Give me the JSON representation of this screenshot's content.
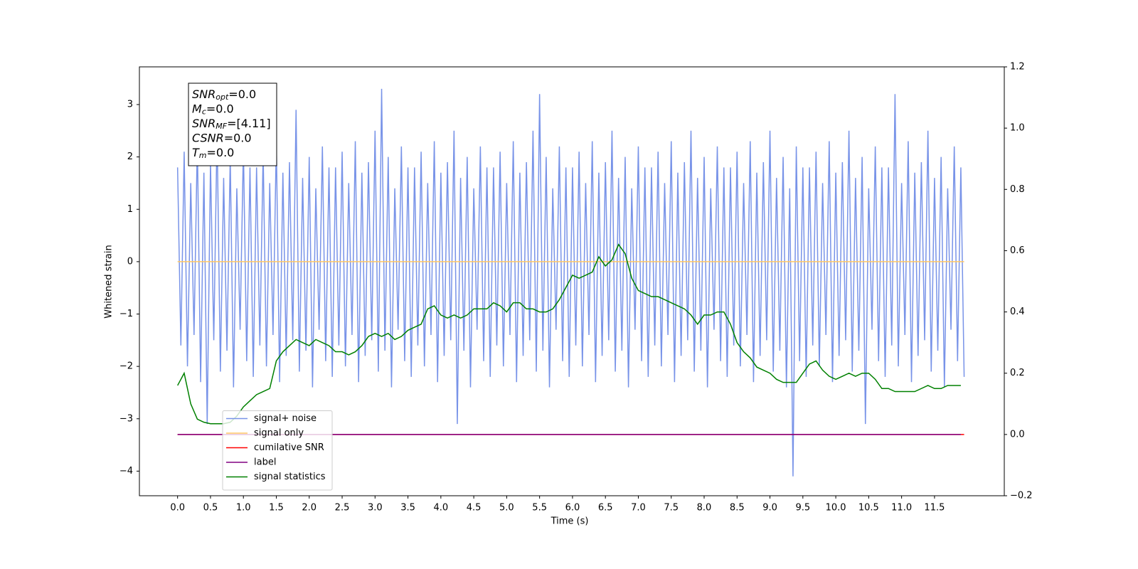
{
  "chart_data": {
    "type": "line",
    "xlabel": "Time (s)",
    "ylabel": "Whitened strain",
    "xlim": [
      -0.58,
      12.56
    ],
    "ylim": [
      -4.47,
      3.72
    ],
    "y2lim": [
      -0.2,
      1.2
    ],
    "xticks": [
      {
        "value": 0,
        "label": "0.0"
      },
      {
        "value": 0.5,
        "label": "0.5"
      },
      {
        "value": 1,
        "label": "1.0"
      },
      {
        "value": 1.5,
        "label": "1.5"
      },
      {
        "value": 2,
        "label": "2.0"
      },
      {
        "value": 2.5,
        "label": "2.5"
      },
      {
        "value": 3,
        "label": "3.0"
      },
      {
        "value": 3.5,
        "label": "3.5"
      },
      {
        "value": 4,
        "label": "4.0"
      },
      {
        "value": 4.5,
        "label": "4.5"
      },
      {
        "value": 5,
        "label": "5.0"
      },
      {
        "value": 5.5,
        "label": "5.5"
      },
      {
        "value": 6,
        "label": "6.0"
      },
      {
        "value": 6.5,
        "label": "6.5"
      },
      {
        "value": 7,
        "label": "7.0"
      },
      {
        "value": 7.5,
        "label": "7.5"
      },
      {
        "value": 8,
        "label": "8.0"
      },
      {
        "value": 8.5,
        "label": "8.5"
      },
      {
        "value": 9,
        "label": "9.0"
      },
      {
        "value": 9.5,
        "label": "9.5"
      },
      {
        "value": 10,
        "label": "10.0"
      },
      {
        "value": 10.5,
        "label": "10.5"
      },
      {
        "value": 11,
        "label": "11.0"
      },
      {
        "value": 11.5,
        "label": "11.5"
      }
    ],
    "yticks": [
      {
        "value": -4,
        "label": "−4"
      },
      {
        "value": -3,
        "label": "−3"
      },
      {
        "value": -2,
        "label": "−2"
      },
      {
        "value": -1,
        "label": "−1"
      },
      0,
      1,
      2,
      3
    ],
    "y2ticks": [
      {
        "value": -0.2,
        "label": "−0.2"
      },
      {
        "value": 0,
        "label": "0.0"
      },
      {
        "value": 0.2,
        "label": "0.2"
      },
      {
        "value": 0.4,
        "label": "0.4"
      },
      {
        "value": 0.6,
        "label": "0.6"
      },
      {
        "value": 0.8,
        "label": "0.8"
      },
      {
        "value": 1.0,
        "label": "1.0"
      },
      {
        "value": 1.2,
        "label": "1.2"
      }
    ],
    "legend": "lower left",
    "annotations": [
      {
        "text": "SNR",
        "sub": "opt",
        "value": "=0.0"
      },
      {
        "text": "M",
        "sub": "c",
        "value": "=0.0"
      },
      {
        "text": "SNR",
        "sub": "MF",
        "value": "=[4.11]"
      },
      {
        "text": "CSNR",
        "value": "=0.0"
      },
      {
        "text": "T",
        "sub": "m",
        "value": "=0.0"
      }
    ],
    "series": [
      {
        "name": "signal+ noise",
        "color": "#7893e8",
        "x": [
          0,
          0.05,
          0.1,
          0.15,
          0.2,
          0.25,
          0.3,
          0.35,
          0.4,
          0.45,
          0.5,
          0.55,
          0.6,
          0.65,
          0.7,
          0.75,
          0.8,
          0.85,
          0.9,
          0.95,
          1,
          1.05,
          1.1,
          1.15,
          1.2,
          1.25,
          1.3,
          1.35,
          1.4,
          1.45,
          1.5,
          1.55,
          1.6,
          1.65,
          1.7,
          1.75,
          1.8,
          1.85,
          1.9,
          1.95,
          2,
          2.05,
          2.1,
          2.15,
          2.2,
          2.25,
          2.3,
          2.35,
          2.4,
          2.45,
          2.5,
          2.55,
          2.6,
          2.65,
          2.7,
          2.75,
          2.8,
          2.85,
          2.9,
          2.95,
          3,
          3.05,
          3.1,
          3.15,
          3.2,
          3.25,
          3.3,
          3.35,
          3.4,
          3.45,
          3.5,
          3.55,
          3.6,
          3.65,
          3.7,
          3.75,
          3.8,
          3.85,
          3.9,
          3.95,
          4,
          4.05,
          4.1,
          4.15,
          4.2,
          4.25,
          4.3,
          4.35,
          4.4,
          4.45,
          4.5,
          4.55,
          4.6,
          4.65,
          4.7,
          4.75,
          4.8,
          4.85,
          4.9,
          4.95,
          5,
          5.05,
          5.1,
          5.15,
          5.2,
          5.25,
          5.3,
          5.35,
          5.4,
          5.45,
          5.5,
          5.55,
          5.6,
          5.65,
          5.7,
          5.75,
          5.8,
          5.85,
          5.9,
          5.95,
          6,
          6.05,
          6.1,
          6.15,
          6.2,
          6.25,
          6.3,
          6.35,
          6.4,
          6.45,
          6.5,
          6.55,
          6.6,
          6.65,
          6.7,
          6.75,
          6.8,
          6.85,
          6.9,
          6.95,
          7,
          7.05,
          7.1,
          7.15,
          7.2,
          7.25,
          7.3,
          7.35,
          7.4,
          7.45,
          7.5,
          7.55,
          7.6,
          7.65,
          7.7,
          7.75,
          7.8,
          7.85,
          7.9,
          7.95,
          8,
          8.05,
          8.1,
          8.15,
          8.2,
          8.25,
          8.3,
          8.35,
          8.4,
          8.45,
          8.5,
          8.55,
          8.6,
          8.65,
          8.7,
          8.75,
          8.8,
          8.85,
          8.9,
          8.95,
          9,
          9.05,
          9.1,
          9.15,
          9.2,
          9.25,
          9.3,
          9.35,
          9.4,
          9.45,
          9.5,
          9.55,
          9.6,
          9.65,
          9.7,
          9.75,
          9.8,
          9.85,
          9.9,
          9.95,
          10,
          10.05,
          10.1,
          10.15,
          10.2,
          10.25,
          10.3,
          10.35,
          10.4,
          10.45,
          10.5,
          10.55,
          10.6,
          10.65,
          10.7,
          10.75,
          10.8,
          10.85,
          10.9,
          10.95,
          11,
          11.05,
          11.1,
          11.15,
          11.2,
          11.25,
          11.3,
          11.35,
          11.4,
          11.45,
          11.5,
          11.55,
          11.6,
          11.65,
          11.7,
          11.75,
          11.8,
          11.85,
          11.9,
          11.95
        ],
        "values": [
          1.8,
          -1.6,
          2.1,
          -2.0,
          1.5,
          -1.4,
          2.3,
          -2.3,
          1.7,
          -3.1,
          1.9,
          -1.5,
          2.5,
          -2.1,
          1.6,
          -1.7,
          2.0,
          -2.4,
          1.4,
          -1.3,
          2.2,
          -1.9,
          1.8,
          -2.2,
          1.8,
          -1.6,
          2.1,
          -2.0,
          1.5,
          -1.4,
          2.3,
          -2.3,
          1.7,
          -1.8,
          1.9,
          -1.5,
          2.9,
          -2.1,
          1.6,
          -1.7,
          2.0,
          -2.4,
          1.4,
          -1.3,
          2.2,
          -1.9,
          1.8,
          -2.2,
          1.8,
          -1.6,
          2.1,
          -2.0,
          1.5,
          -1.4,
          2.3,
          -2.3,
          1.7,
          -1.8,
          1.9,
          -1.5,
          2.5,
          -2.1,
          3.3,
          -1.7,
          2.0,
          -2.4,
          1.4,
          -1.3,
          2.2,
          -1.9,
          1.8,
          -2.2,
          1.8,
          -1.6,
          2.1,
          -2.0,
          1.5,
          -1.4,
          2.3,
          -2.3,
          1.7,
          -1.8,
          1.9,
          -1.5,
          2.5,
          -3.1,
          1.6,
          -1.7,
          2.0,
          -2.4,
          1.4,
          -1.3,
          2.2,
          -1.9,
          1.8,
          -2.2,
          1.8,
          -1.6,
          2.1,
          -2.0,
          1.5,
          -1.4,
          2.3,
          -2.3,
          1.7,
          -1.8,
          1.9,
          -1.5,
          2.5,
          -2.1,
          3.2,
          -1.7,
          2.0,
          -2.4,
          1.4,
          -1.3,
          2.2,
          -1.9,
          1.8,
          -2.2,
          1.8,
          -1.6,
          2.1,
          -2.0,
          1.5,
          -1.4,
          2.3,
          -2.3,
          1.7,
          -1.8,
          1.9,
          -1.5,
          2.5,
          -2.1,
          1.6,
          -1.7,
          2.0,
          -2.4,
          1.4,
          -1.3,
          2.2,
          -1.9,
          1.8,
          -2.2,
          1.8,
          -1.6,
          2.1,
          -2.0,
          1.5,
          -1.4,
          2.3,
          -2.3,
          1.7,
          -1.8,
          1.9,
          -1.5,
          2.5,
          -2.1,
          1.6,
          -1.7,
          2.0,
          -2.4,
          1.4,
          -1.3,
          2.2,
          -1.9,
          1.8,
          -2.2,
          1.8,
          -1.6,
          2.1,
          -2.0,
          1.5,
          -1.4,
          2.3,
          -2.3,
          1.7,
          -1.8,
          1.9,
          -1.5,
          2.5,
          -2.1,
          1.6,
          -1.7,
          2.0,
          -2.4,
          1.4,
          -4.1,
          2.2,
          -1.9,
          1.8,
          -2.2,
          1.8,
          -1.6,
          2.1,
          -2.0,
          1.5,
          -1.4,
          2.3,
          -2.3,
          1.7,
          -1.8,
          1.9,
          -1.5,
          2.5,
          -2.1,
          1.6,
          -1.7,
          2.0,
          -3.1,
          1.4,
          -1.3,
          2.2,
          -1.9,
          1.8,
          -2.2,
          1.8,
          -1.6,
          3.2,
          -2.0,
          1.5,
          -1.4,
          2.3,
          -2.3,
          1.7,
          -1.8,
          1.9,
          -1.5,
          2.5,
          -2.1,
          1.6,
          -1.7,
          2.0,
          -2.4,
          1.4,
          -1.3,
          2.2,
          -1.9,
          1.8,
          -2.2
        ]
      },
      {
        "name": "signal only",
        "color": "#ffc766",
        "x": [
          0,
          11.95
        ],
        "values": [
          0,
          0
        ]
      },
      {
        "name": "cumilative SNR",
        "color": "#ff0000",
        "axis": "y2",
        "x": [
          0,
          11.95
        ],
        "values": [
          0,
          0
        ]
      },
      {
        "name": "label",
        "color": "#800080",
        "axis": "y2",
        "x": [
          0,
          11.9
        ],
        "values": [
          0,
          0
        ]
      },
      {
        "name": "signal statistics",
        "color": "#008000",
        "axis": "y2",
        "x": [
          0,
          0.1,
          0.2,
          0.3,
          0.4,
          0.5,
          0.6,
          0.7,
          0.8,
          0.9,
          1,
          1.1,
          1.2,
          1.3,
          1.4,
          1.5,
          1.6,
          1.7,
          1.8,
          1.9,
          2,
          2.1,
          2.2,
          2.3,
          2.4,
          2.5,
          2.6,
          2.7,
          2.8,
          2.9,
          3,
          3.1,
          3.2,
          3.3,
          3.4,
          3.5,
          3.6,
          3.7,
          3.8,
          3.9,
          4,
          4.1,
          4.2,
          4.3,
          4.4,
          4.5,
          4.6,
          4.7,
          4.8,
          4.9,
          5,
          5.1,
          5.2,
          5.3,
          5.4,
          5.5,
          5.6,
          5.7,
          5.8,
          5.9,
          6,
          6.1,
          6.2,
          6.3,
          6.4,
          6.5,
          6.6,
          6.7,
          6.8,
          6.9,
          7,
          7.1,
          7.2,
          7.3,
          7.4,
          7.5,
          7.6,
          7.7,
          7.8,
          7.9,
          8,
          8.1,
          8.2,
          8.3,
          8.4,
          8.5,
          8.6,
          8.7,
          8.8,
          8.9,
          9,
          9.1,
          9.2,
          9.3,
          9.4,
          9.5,
          9.6,
          9.7,
          9.8,
          9.9,
          10,
          10.1,
          10.2,
          10.3,
          10.4,
          10.5,
          10.6,
          10.7,
          10.8,
          10.9,
          11,
          11.1,
          11.2,
          11.3,
          11.4,
          11.5,
          11.6,
          11.7,
          11.8,
          11.9
        ],
        "values": [
          0.16,
          0.2,
          0.1,
          0.05,
          0.04,
          0.035,
          0.035,
          0.035,
          0.04,
          0.06,
          0.09,
          0.11,
          0.13,
          0.14,
          0.15,
          0.24,
          0.27,
          0.29,
          0.31,
          0.3,
          0.29,
          0.31,
          0.3,
          0.29,
          0.27,
          0.27,
          0.26,
          0.27,
          0.29,
          0.32,
          0.33,
          0.32,
          0.33,
          0.31,
          0.32,
          0.34,
          0.35,
          0.36,
          0.41,
          0.42,
          0.39,
          0.38,
          0.39,
          0.38,
          0.39,
          0.41,
          0.41,
          0.41,
          0.43,
          0.42,
          0.4,
          0.43,
          0.43,
          0.41,
          0.41,
          0.4,
          0.4,
          0.41,
          0.44,
          0.48,
          0.52,
          0.51,
          0.52,
          0.53,
          0.58,
          0.55,
          0.57,
          0.62,
          0.59,
          0.51,
          0.47,
          0.46,
          0.45,
          0.45,
          0.44,
          0.43,
          0.42,
          0.41,
          0.39,
          0.36,
          0.39,
          0.39,
          0.4,
          0.4,
          0.36,
          0.3,
          0.27,
          0.25,
          0.22,
          0.21,
          0.2,
          0.18,
          0.17,
          0.17,
          0.17,
          0.2,
          0.23,
          0.24,
          0.21,
          0.19,
          0.18,
          0.19,
          0.2,
          0.19,
          0.2,
          0.2,
          0.18,
          0.15,
          0.15,
          0.14,
          0.14,
          0.14,
          0.14,
          0.15,
          0.16,
          0.15,
          0.15,
          0.16,
          0.16,
          0.16
        ]
      }
    ]
  }
}
